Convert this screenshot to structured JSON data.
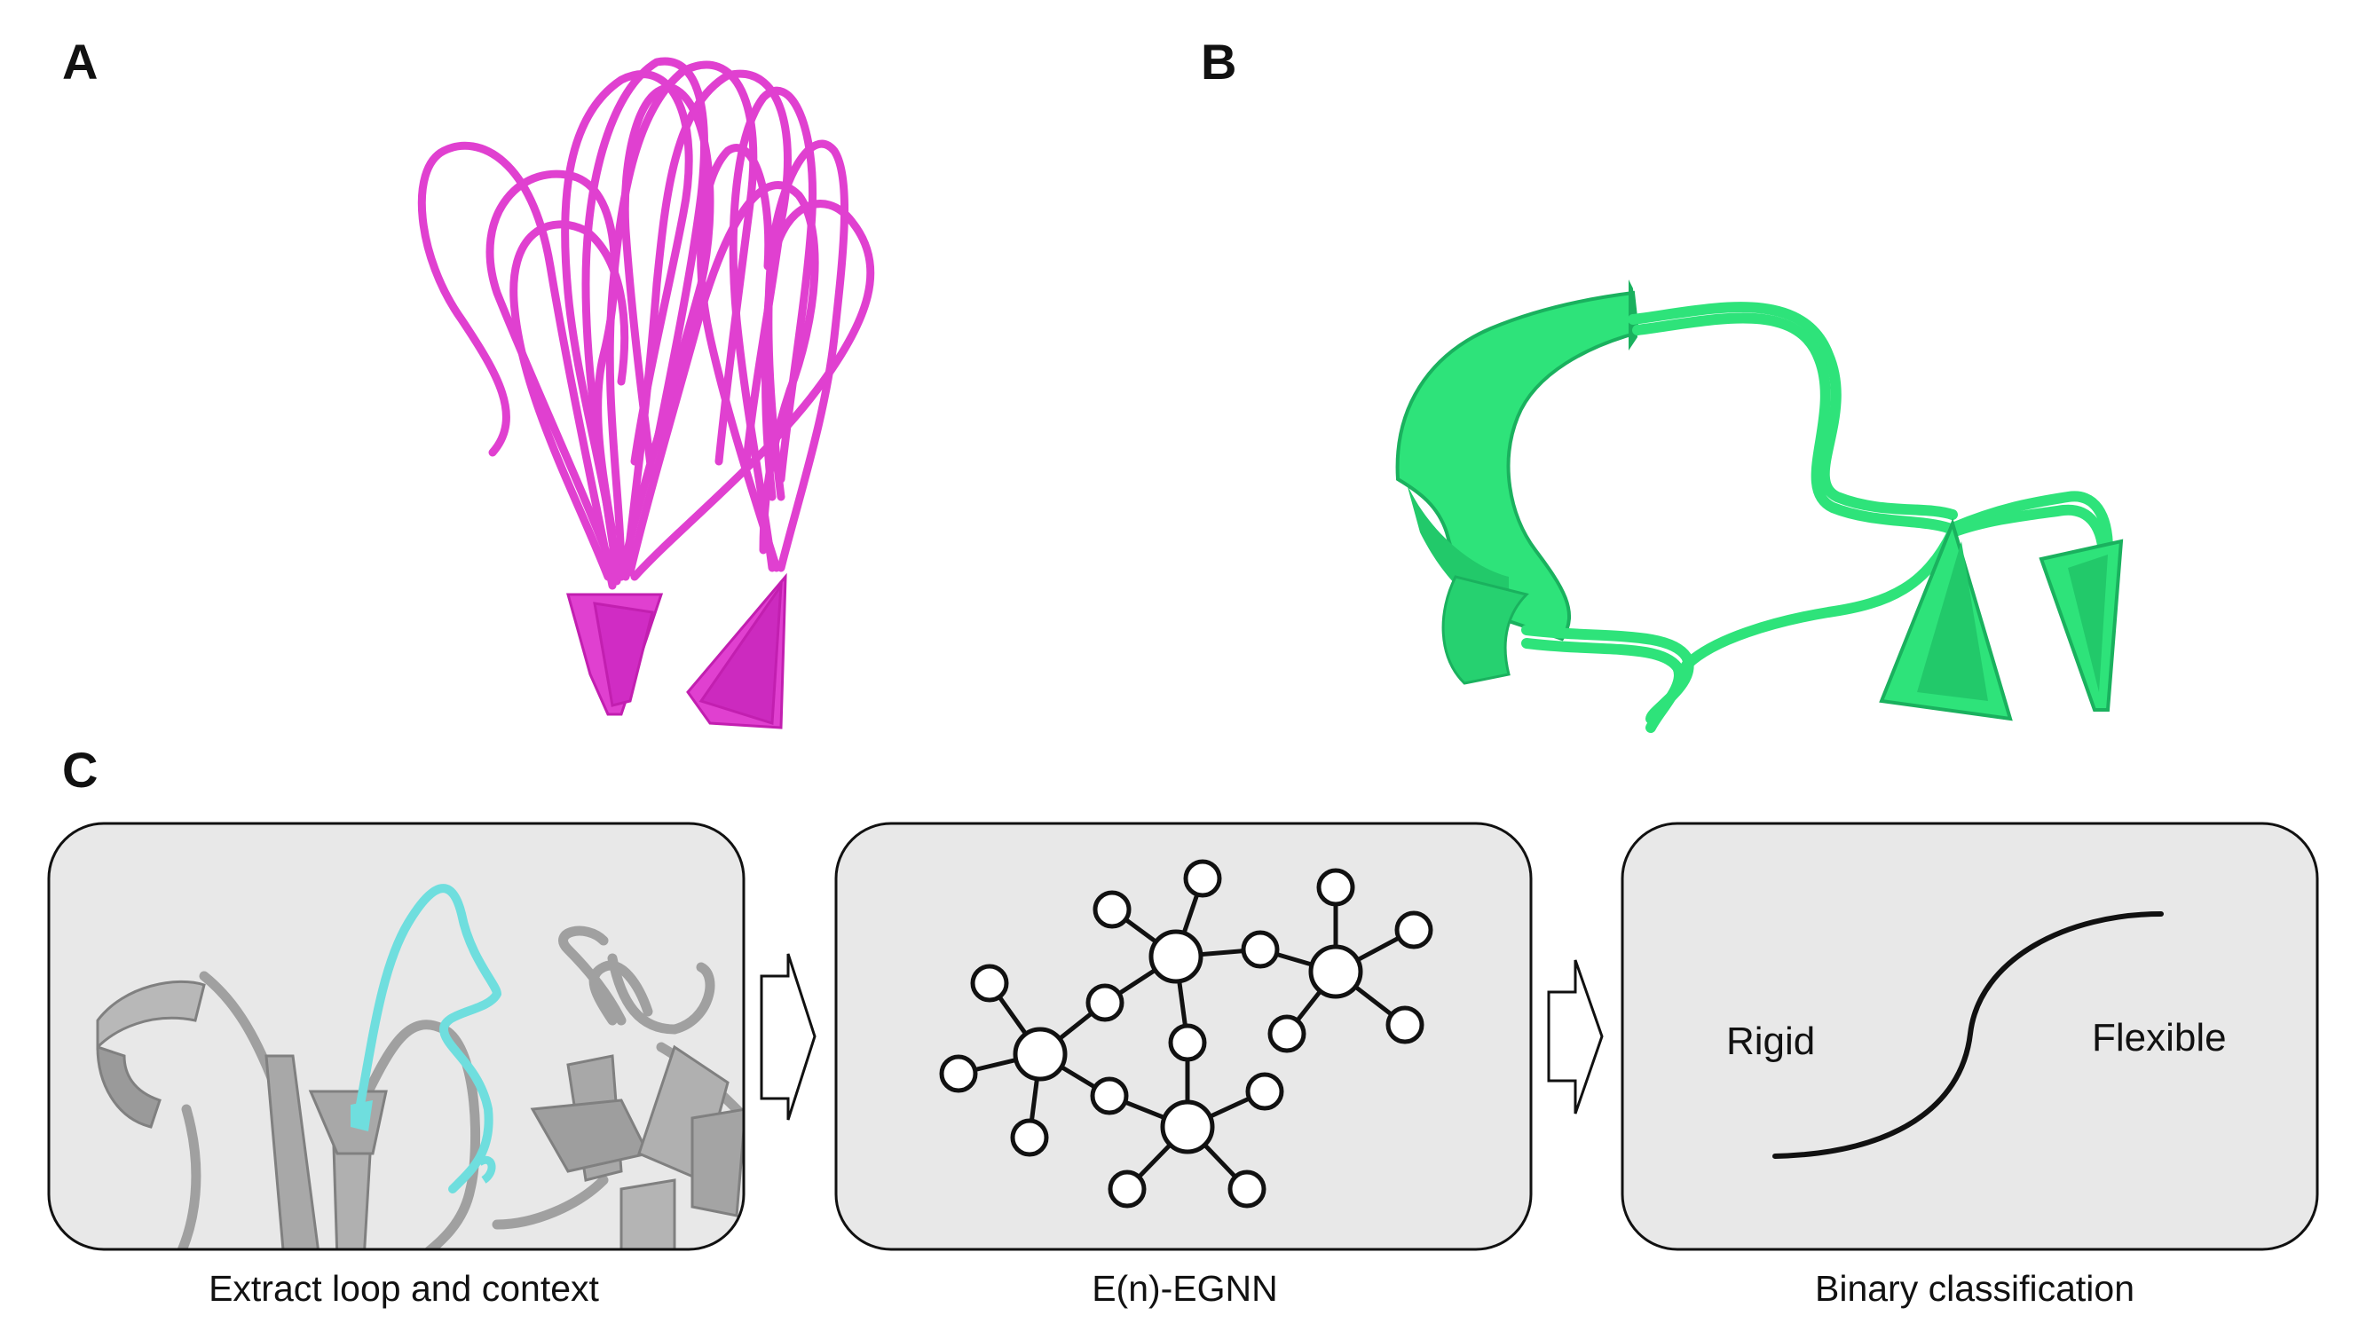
{
  "panels": {
    "a": {
      "letter": "A"
    },
    "b": {
      "letter": "B"
    },
    "c": {
      "letter": "C"
    }
  },
  "pipeline": {
    "steps": [
      {
        "caption": "Extract loop and context"
      },
      {
        "caption": "E(n)-EGNN"
      },
      {
        "caption": "Binary classification"
      }
    ],
    "classification": {
      "left_label": "Rigid",
      "right_label": "Flexible"
    }
  },
  "colors": {
    "loop_ensemble_a": "#e040d0",
    "loop_ensemble_b": "#2ee37a",
    "highlight_loop": "#6fdede",
    "context_structure": "#a0a0a0",
    "box_fill": "#e8e8e8"
  }
}
